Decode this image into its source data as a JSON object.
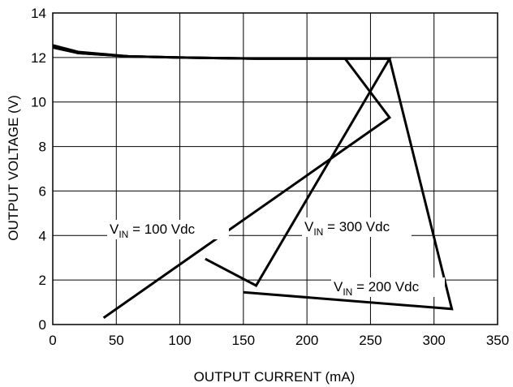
{
  "chart_data": {
    "type": "line",
    "xlabel": "OUTPUT CURRENT (mA)",
    "ylabel": "OUTPUT VOLTAGE (V)",
    "xlim": [
      0,
      350
    ],
    "ylim": [
      0,
      14
    ],
    "xticks": [
      0,
      50,
      100,
      150,
      200,
      250,
      300,
      350
    ],
    "yticks": [
      0,
      2,
      4,
      6,
      8,
      10,
      12,
      14
    ],
    "grid": true,
    "series": [
      {
        "name": "VIN = 100 Vdc",
        "label_main": "V",
        "label_sub": "IN",
        "label_rest": " = 100 Vdc",
        "x": [
          0,
          20,
          60,
          100,
          160,
          200,
          230,
          265,
          40
        ],
        "y": [
          12.55,
          12.25,
          12.05,
          12.0,
          11.95,
          11.95,
          11.95,
          9.3,
          0.3
        ]
      },
      {
        "name": "VIN = 300 Vdc",
        "label_main": "V",
        "label_sub": "IN",
        "label_rest": " = 300 Vdc",
        "x": [
          0,
          20,
          60,
          100,
          160,
          200,
          265,
          160,
          120
        ],
        "y": [
          12.45,
          12.2,
          12.05,
          12.0,
          11.95,
          11.95,
          11.95,
          1.75,
          2.95
        ]
      },
      {
        "name": "VIN = 200 Vdc",
        "label_main": "V",
        "label_sub": "IN",
        "label_rest": " = 200 Vdc",
        "x": [
          0,
          20,
          60,
          100,
          160,
          200,
          265,
          314,
          150
        ],
        "y": [
          12.5,
          12.2,
          12.05,
          12.0,
          11.95,
          11.95,
          11.95,
          0.7,
          1.45
        ]
      }
    ]
  }
}
